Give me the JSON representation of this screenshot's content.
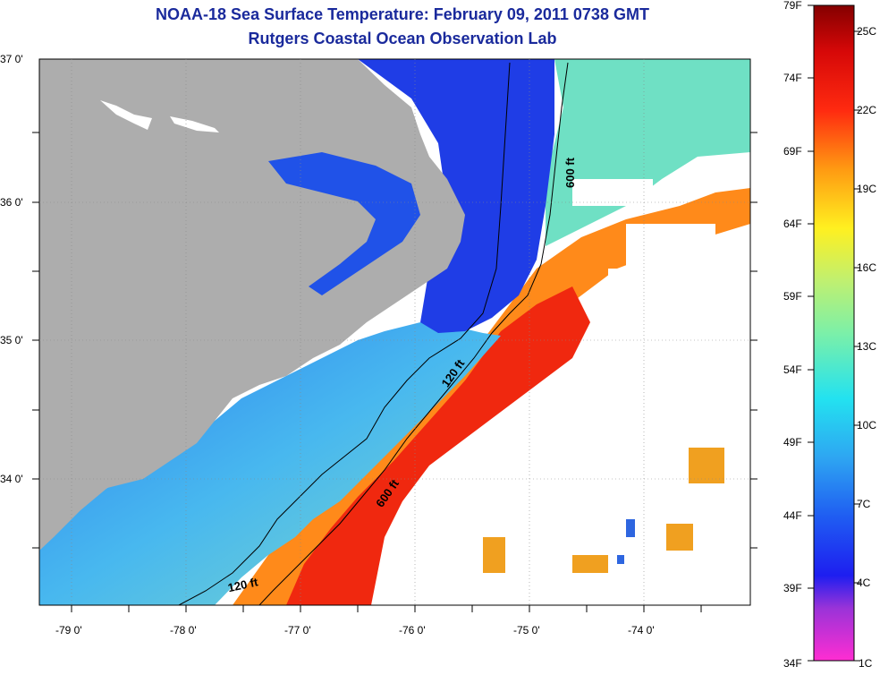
{
  "title": "NOAA-18 Sea Surface Temperature:  February 09, 2011 0738 GMT",
  "subtitle": "Rutgers Coastal Ocean Observation Lab",
  "lat_labels": [
    "37 0'",
    "36 0'",
    "35 0'",
    "34 0'"
  ],
  "lon_labels": [
    "-79 0'",
    "-78 0'",
    "-77 0'",
    "-76 0'",
    "-75 0'",
    "-74 0'"
  ],
  "contours": {
    "c600_upper": "600 ft",
    "c120_upper": "120 ft",
    "c600_lower": "600 ft",
    "c120_lower": "120 ft"
  },
  "colorbar": {
    "fahrenheit": [
      "79F",
      "74F",
      "69F",
      "64F",
      "59F",
      "54F",
      "49F",
      "44F",
      "39F",
      "34F"
    ],
    "celsius": [
      "25C",
      "22C",
      "19C",
      "16C",
      "13C",
      "10C",
      "7C",
      "4C",
      "1C"
    ]
  },
  "colors": {
    "land": "#adadad",
    "title": "#1a2a9c"
  }
}
